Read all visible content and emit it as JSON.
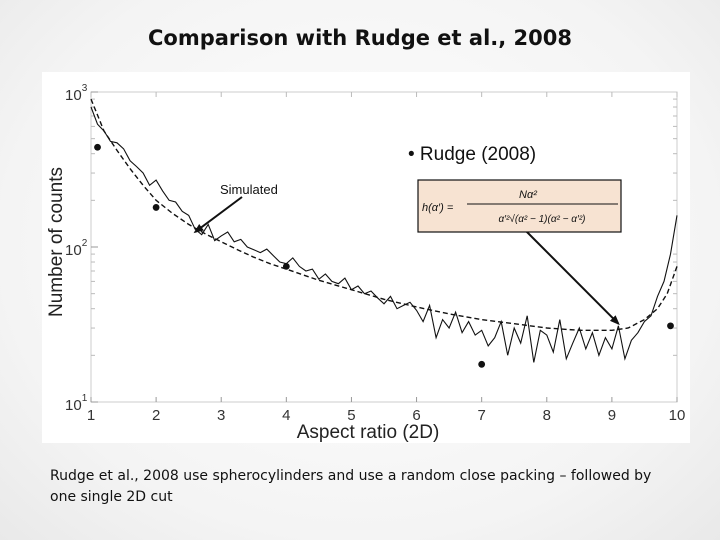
{
  "slide": {
    "title": "Comparison with Rudge et al., 2008",
    "caption": "Rudge et al., 2008 use spherocylinders and use a random close packing – followed by one single 2D cut"
  },
  "chart_data": {
    "type": "line",
    "xlabel": "Aspect ratio (2D)",
    "ylabel": "Number of counts",
    "xlim": [
      1,
      10
    ],
    "ylim": [
      10,
      1000
    ],
    "yscale": "log",
    "x_ticks": [
      "1",
      "2",
      "3",
      "4",
      "5",
      "6",
      "7",
      "8",
      "9",
      "10"
    ],
    "y_ticks": [
      {
        "base": "10",
        "exp": "1",
        "value": 10
      },
      {
        "base": "10",
        "exp": "2",
        "value": 100
      },
      {
        "base": "10",
        "exp": "3",
        "value": 1000
      }
    ],
    "grid": false,
    "legend_text": "• Rudge (2008)",
    "formula": {
      "lhs": "h(α′) =",
      "numerator": "Nα²",
      "denominator": "α′²√(α² − 1)(α² − α′²)"
    },
    "annotations": [
      {
        "text": "Simulated",
        "arrow_to": [
          2.6,
          125
        ]
      },
      {
        "text": "",
        "arrow_from_label": "formula",
        "arrow_to": [
          9.1,
          32
        ]
      }
    ],
    "series": [
      {
        "style": "solid",
        "x": [
          1.0,
          1.1,
          1.2,
          1.3,
          1.4,
          1.5,
          1.6,
          1.7,
          1.8,
          1.9,
          2.0,
          2.1,
          2.2,
          2.3,
          2.4,
          2.5,
          2.6,
          2.7,
          2.8,
          2.9,
          3.0,
          3.1,
          3.2,
          3.3,
          3.4,
          3.5,
          3.6,
          3.7,
          3.8,
          3.9,
          4.0,
          4.1,
          4.2,
          4.3,
          4.4,
          4.5,
          4.6,
          4.7,
          4.8,
          4.9,
          5.0,
          5.1,
          5.2,
          5.3,
          5.4,
          5.5,
          5.6,
          5.7,
          5.8,
          5.9,
          6.0,
          6.1,
          6.2,
          6.3,
          6.4,
          6.5,
          6.6,
          6.7,
          6.8,
          6.9,
          7.0,
          7.1,
          7.2,
          7.3,
          7.4,
          7.5,
          7.6,
          7.7,
          7.8,
          7.9,
          8.0,
          8.1,
          8.2,
          8.3,
          8.4,
          8.5,
          8.6,
          8.7,
          8.8,
          8.9,
          9.0,
          9.1,
          9.2,
          9.3,
          9.4,
          9.5,
          9.6,
          9.7,
          9.8,
          9.9,
          10.0
        ],
        "y": [
          800,
          620,
          560,
          480,
          470,
          430,
          360,
          330,
          300,
          250,
          270,
          230,
          200,
          195,
          170,
          160,
          130,
          120,
          140,
          110,
          118,
          125,
          108,
          112,
          100,
          96,
          92,
          97,
          88,
          80,
          78,
          85,
          75,
          70,
          72,
          62,
          67,
          60,
          58,
          63,
          53,
          56,
          50,
          52,
          47,
          43,
          48,
          40,
          42,
          44,
          39,
          33,
          42,
          26,
          34,
          30,
          38,
          28,
          33,
          27,
          29,
          23,
          26,
          33,
          20,
          30,
          24,
          36,
          18,
          29,
          27,
          21,
          34,
          19,
          24,
          30,
          22,
          28,
          20,
          26,
          22,
          31,
          19,
          25,
          28,
          33,
          36,
          48,
          60,
          90,
          160
        ]
      },
      {
        "style": "dashed",
        "x": [
          1.0,
          1.2,
          1.4,
          1.6,
          1.8,
          2.0,
          2.25,
          2.5,
          2.75,
          3.0,
          3.25,
          3.5,
          3.75,
          4.0,
          4.5,
          5.0,
          5.5,
          6.0,
          6.5,
          7.0,
          7.5,
          8.0,
          8.5,
          9.0,
          9.25,
          9.5,
          9.7,
          9.85,
          10.0
        ],
        "y": [
          900,
          560,
          420,
          320,
          250,
          200,
          165,
          140,
          122,
          108,
          96,
          86,
          78,
          72,
          61,
          53,
          46,
          41,
          37,
          34,
          32,
          30,
          29,
          29,
          30,
          34,
          40,
          50,
          75
        ]
      },
      {
        "style": "points",
        "x": [
          1.1,
          2.0,
          4.0,
          7.0,
          9.9
        ],
        "y": [
          440,
          180,
          75,
          17.5,
          31
        ]
      }
    ]
  }
}
